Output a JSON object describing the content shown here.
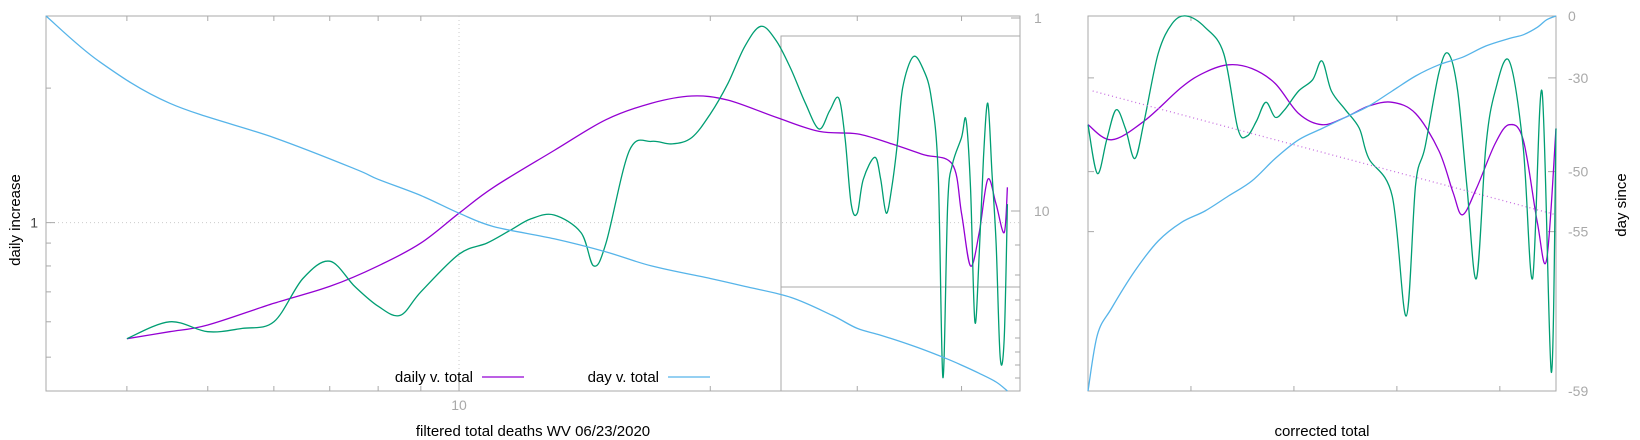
{
  "chart_data": [
    {
      "type": "line",
      "ylabel": "daily increase",
      "xlabel": "filtered total deaths WV 06/23/2020",
      "x_scale": "log",
      "y_scale": "log",
      "x_ticks": [
        "10"
      ],
      "y_ticks": [
        "1"
      ],
      "y2_ticks": [
        "1",
        "10"
      ],
      "grid": true,
      "legend": {
        "placement": "bottom-center",
        "entries": [
          "daily v. total",
          "day v. total"
        ]
      },
      "series": [
        {
          "name": "daily v. total",
          "color": "#9400d3",
          "points": [
            [
              4,
              0.55
            ],
            [
              4.5,
              0.57
            ],
            [
              5,
              0.59
            ],
            [
              6,
              0.66
            ],
            [
              7,
              0.72
            ],
            [
              8,
              0.8
            ],
            [
              9,
              0.9
            ],
            [
              10,
              1.05
            ],
            [
              11,
              1.2
            ],
            [
              13,
              1.45
            ],
            [
              15,
              1.7
            ],
            [
              17,
              1.85
            ],
            [
              19,
              1.92
            ],
            [
              21,
              1.88
            ],
            [
              24,
              1.72
            ],
            [
              27,
              1.6
            ],
            [
              30,
              1.58
            ],
            [
              33,
              1.5
            ],
            [
              36,
              1.42
            ],
            [
              39,
              1.35
            ],
            [
              40,
              1.05
            ],
            [
              41,
              0.8
            ],
            [
              42,
              0.95
            ],
            [
              43,
              1.25
            ],
            [
              44,
              1.1
            ],
            [
              45,
              0.95
            ],
            [
              45.4,
              1.2
            ]
          ]
        },
        {
          "color": "#009e73",
          "points": [
            [
              4,
              0.55
            ],
            [
              4.5,
              0.6
            ],
            [
              5,
              0.57
            ],
            [
              5.5,
              0.58
            ],
            [
              6,
              0.6
            ],
            [
              6.5,
              0.75
            ],
            [
              7,
              0.82
            ],
            [
              7.5,
              0.72
            ],
            [
              8,
              0.65
            ],
            [
              8.5,
              0.62
            ],
            [
              9,
              0.7
            ],
            [
              10,
              0.85
            ],
            [
              10.8,
              0.9
            ],
            [
              11.5,
              0.96
            ],
            [
              12.2,
              1.02
            ],
            [
              13,
              1.04
            ],
            [
              14,
              0.95
            ],
            [
              14.5,
              0.8
            ],
            [
              15,
              0.9
            ],
            [
              16,
              1.45
            ],
            [
              17,
              1.52
            ],
            [
              18,
              1.5
            ],
            [
              19,
              1.55
            ],
            [
              20,
              1.75
            ],
            [
              21,
              2.05
            ],
            [
              22,
              2.48
            ],
            [
              23,
              2.75
            ],
            [
              24,
              2.55
            ],
            [
              25,
              2.2
            ],
            [
              26,
              1.85
            ],
            [
              27,
              1.62
            ],
            [
              27.8,
              1.78
            ],
            [
              28.5,
              1.9
            ],
            [
              29,
              1.55
            ],
            [
              29.5,
              1.1
            ],
            [
              30,
              1.05
            ],
            [
              30.5,
              1.25
            ],
            [
              31.5,
              1.4
            ],
            [
              32,
              1.25
            ],
            [
              32.5,
              1.05
            ],
            [
              33,
              1.2
            ],
            [
              33.5,
              1.5
            ],
            [
              34,
              2.0
            ],
            [
              35,
              2.35
            ],
            [
              36,
              2.2
            ],
            [
              36.8,
              1.9
            ],
            [
              37.5,
              1.3
            ],
            [
              38,
              0.45
            ],
            [
              38.5,
              1.1
            ],
            [
              39,
              1.35
            ],
            [
              40,
              1.55
            ],
            [
              40.5,
              1.7
            ],
            [
              41,
              1.2
            ],
            [
              41.5,
              0.6
            ],
            [
              42,
              0.85
            ],
            [
              42.5,
              1.4
            ],
            [
              43,
              1.85
            ],
            [
              43.5,
              1.3
            ],
            [
              44,
              0.9
            ],
            [
              44.5,
              0.5
            ],
            [
              45,
              0.55
            ],
            [
              45.4,
              1.1
            ]
          ]
        },
        {
          "name": "day v. total",
          "color": "#56b4e9",
          "points": [
            [
              3.2,
              2.9
            ],
            [
              3.7,
              2.3
            ],
            [
              4.5,
              1.85
            ],
            [
              6,
              1.55
            ],
            [
              7.5,
              1.32
            ],
            [
              8,
              1.25
            ],
            [
              9,
              1.15
            ],
            [
              10,
              1.05
            ],
            [
              11,
              0.98
            ],
            [
              13,
              0.92
            ],
            [
              15,
              0.86
            ],
            [
              17,
              0.8
            ],
            [
              20,
              0.75
            ],
            [
              22,
              0.72
            ],
            [
              25,
              0.68
            ],
            [
              28,
              0.62
            ],
            [
              30,
              0.58
            ],
            [
              32,
              0.56
            ],
            [
              35,
              0.53
            ],
            [
              38,
              0.5
            ],
            [
              40,
              0.48
            ],
            [
              42,
              0.46
            ],
            [
              44,
              0.44
            ],
            [
              45.4,
              0.42
            ]
          ]
        }
      ],
      "inset_box": true
    },
    {
      "type": "line",
      "xlabel": "corrected total",
      "ylabel": "day since",
      "y2_ticks": [
        "0",
        "-30",
        "-50",
        "-55",
        "-59"
      ],
      "series": [
        {
          "color": "#9400d3",
          "points": [
            [
              0,
              0.29
            ],
            [
              0.05,
              0.33
            ],
            [
              0.12,
              0.28
            ],
            [
              0.2,
              0.19
            ],
            [
              0.25,
              0.15
            ],
            [
              0.3,
              0.13
            ],
            [
              0.35,
              0.14
            ],
            [
              0.4,
              0.18
            ],
            [
              0.45,
              0.26
            ],
            [
              0.5,
              0.29
            ],
            [
              0.55,
              0.27
            ],
            [
              0.6,
              0.24
            ],
            [
              0.65,
              0.23
            ],
            [
              0.7,
              0.26
            ],
            [
              0.75,
              0.36
            ],
            [
              0.78,
              0.47
            ],
            [
              0.8,
              0.53
            ],
            [
              0.83,
              0.46
            ],
            [
              0.87,
              0.34
            ],
            [
              0.9,
              0.29
            ],
            [
              0.93,
              0.33
            ],
            [
              0.96,
              0.55
            ],
            [
              0.98,
              0.65
            ],
            [
              1.0,
              0.3
            ]
          ]
        },
        {
          "color": "#009e73",
          "points": [
            [
              0,
              0.29
            ],
            [
              0.02,
              0.42
            ],
            [
              0.04,
              0.33
            ],
            [
              0.06,
              0.25
            ],
            [
              0.08,
              0.3
            ],
            [
              0.1,
              0.38
            ],
            [
              0.12,
              0.28
            ],
            [
              0.15,
              0.1
            ],
            [
              0.18,
              0.02
            ],
            [
              0.21,
              0.0
            ],
            [
              0.25,
              0.03
            ],
            [
              0.29,
              0.1
            ],
            [
              0.32,
              0.3
            ],
            [
              0.34,
              0.32
            ],
            [
              0.36,
              0.28
            ],
            [
              0.38,
              0.23
            ],
            [
              0.4,
              0.27
            ],
            [
              0.42,
              0.25
            ],
            [
              0.45,
              0.2
            ],
            [
              0.48,
              0.17
            ],
            [
              0.5,
              0.12
            ],
            [
              0.52,
              0.2
            ],
            [
              0.55,
              0.25
            ],
            [
              0.58,
              0.3
            ],
            [
              0.6,
              0.38
            ],
            [
              0.65,
              0.48
            ],
            [
              0.68,
              0.8
            ],
            [
              0.7,
              0.45
            ],
            [
              0.72,
              0.35
            ],
            [
              0.75,
              0.15
            ],
            [
              0.77,
              0.1
            ],
            [
              0.79,
              0.2
            ],
            [
              0.81,
              0.46
            ],
            [
              0.83,
              0.7
            ],
            [
              0.85,
              0.35
            ],
            [
              0.87,
              0.2
            ],
            [
              0.9,
              0.12
            ],
            [
              0.93,
              0.35
            ],
            [
              0.95,
              0.7
            ],
            [
              0.97,
              0.2
            ],
            [
              0.99,
              0.95
            ],
            [
              1.0,
              0.3
            ]
          ]
        },
        {
          "color": "#56b4e9",
          "points": [
            [
              0,
              1.0
            ],
            [
              0.02,
              0.85
            ],
            [
              0.05,
              0.78
            ],
            [
              0.1,
              0.68
            ],
            [
              0.15,
              0.6
            ],
            [
              0.2,
              0.55
            ],
            [
              0.25,
              0.52
            ],
            [
              0.3,
              0.48
            ],
            [
              0.35,
              0.44
            ],
            [
              0.4,
              0.38
            ],
            [
              0.45,
              0.33
            ],
            [
              0.5,
              0.3
            ],
            [
              0.55,
              0.27
            ],
            [
              0.6,
              0.24
            ],
            [
              0.65,
              0.2
            ],
            [
              0.7,
              0.16
            ],
            [
              0.75,
              0.13
            ],
            [
              0.8,
              0.11
            ],
            [
              0.85,
              0.08
            ],
            [
              0.9,
              0.06
            ],
            [
              0.93,
              0.05
            ],
            [
              0.96,
              0.03
            ],
            [
              0.98,
              0.01
            ],
            [
              1.0,
              0.0
            ]
          ]
        },
        {
          "color": "#c770e0",
          "style": "dotted",
          "points": [
            [
              0.01,
              0.2
            ],
            [
              1.0,
              0.53
            ]
          ]
        }
      ]
    }
  ]
}
